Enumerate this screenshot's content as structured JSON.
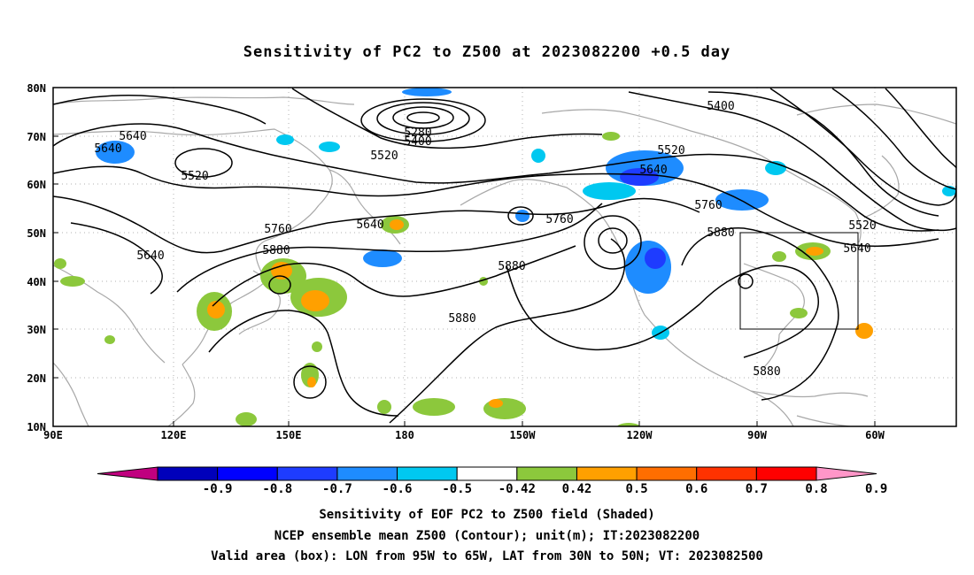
{
  "title": "Sensitivity of PC2 to Z500 at 2023082200 +0.5 day",
  "lat_labels": [
    "80N",
    "70N",
    "60N",
    "50N",
    "40N",
    "30N",
    "20N",
    "10N"
  ],
  "lon_labels": [
    "90E",
    "120E",
    "150E",
    "180",
    "150W",
    "120W",
    "90W",
    "60W"
  ],
  "contour_labels": [
    "5640",
    "5640",
    "5520",
    "5640",
    "5280",
    "5400",
    "5520",
    "5400",
    "5520",
    "5640",
    "5760",
    "5640",
    "5760",
    "5880",
    "5760",
    "5880",
    "5880",
    "5520",
    "5640",
    "5880",
    "5880"
  ],
  "colorbar": {
    "ticks": [
      "-0.9",
      "-0.8",
      "-0.7",
      "-0.6",
      "-0.5",
      "-0.42",
      "0.42",
      "0.5",
      "0.6",
      "0.7",
      "0.8",
      "0.9"
    ],
    "colors": [
      "#c0007f",
      "#0000bb",
      "#0000ff",
      "#1e3cff",
      "#1e8cff",
      "#00c8f0",
      "#ffffff",
      "#8cc83c",
      "#ffa000",
      "#ff6e00",
      "#ff3200",
      "#ff0000",
      "#ff96c8"
    ]
  },
  "captions": [
    "Sensitivity of EOF PC2 to Z500 field (Shaded)",
    "NCEP ensemble mean Z500 (Contour); unit(m); IT:2023082200",
    "Valid area (box): LON from 95W to 65W, LAT from 30N to 50N; VT: 2023082500"
  ]
}
